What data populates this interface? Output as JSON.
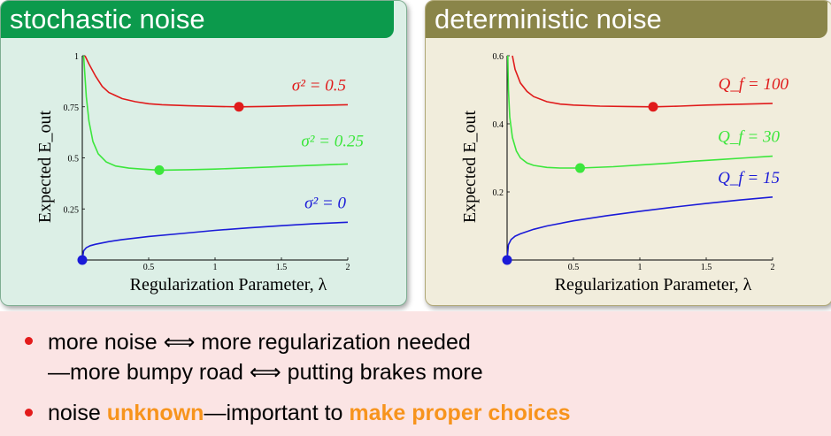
{
  "colors": {
    "stochastic_header": "#0c9a4c",
    "deterministic_header": "#8a8549",
    "red": "#e01b1b",
    "green": "#3ce63c",
    "blue": "#1b1bd8",
    "highlight": "#f7941d",
    "bullet": "#e31b1b"
  },
  "panels": {
    "stochastic": {
      "title": "stochastic noise"
    },
    "deterministic": {
      "title": "deterministic noise"
    }
  },
  "bullets": [
    {
      "line1_a": "more noise ",
      "symbol": "⟺",
      "line1_b": " more regularization needed",
      "line2_a": "—more bumpy road ",
      "line2_b": " putting brakes more"
    },
    {
      "a": "noise ",
      "hl1": "unknown",
      "b": "—important to ",
      "hl2": "make proper choices"
    }
  ],
  "chart_data": [
    {
      "type": "line",
      "xlabel": "Regularization Parameter, λ",
      "ylabel": "Expected E_out",
      "xlim": [
        0,
        2
      ],
      "ylim": [
        0,
        1
      ],
      "xticks": [
        0.5,
        1,
        1.5,
        2
      ],
      "xtick_labels": [
        "0.5",
        "1",
        "1.5",
        "2"
      ],
      "yticks": [
        0.25,
        0.5,
        0.75,
        1
      ],
      "ytick_labels": [
        "0.25",
        "0.5",
        "0.75",
        "1"
      ],
      "series": [
        {
          "name": "σ² = 0.5",
          "color": "red",
          "x": [
            0.02,
            0.05,
            0.1,
            0.15,
            0.2,
            0.3,
            0.4,
            0.5,
            0.6,
            0.8,
            1.0,
            1.18,
            1.4,
            1.6,
            1.8,
            2.0
          ],
          "y": [
            1.0,
            0.96,
            0.9,
            0.85,
            0.82,
            0.79,
            0.775,
            0.765,
            0.76,
            0.755,
            0.752,
            0.75,
            0.752,
            0.755,
            0.757,
            0.76
          ],
          "optimum": {
            "x": 1.18,
            "y": 0.75
          }
        },
        {
          "name": "σ² = 0.25",
          "color": "green",
          "x": [
            0.01,
            0.02,
            0.03,
            0.05,
            0.08,
            0.12,
            0.18,
            0.25,
            0.35,
            0.45,
            0.58,
            0.8,
            1.0,
            1.2,
            1.4,
            1.6,
            1.8,
            2.0
          ],
          "y": [
            1.0,
            0.9,
            0.8,
            0.68,
            0.58,
            0.52,
            0.48,
            0.46,
            0.45,
            0.445,
            0.44,
            0.442,
            0.445,
            0.45,
            0.455,
            0.46,
            0.465,
            0.47
          ],
          "optimum": {
            "x": 0.58,
            "y": 0.44
          }
        },
        {
          "name": "σ² = 0",
          "color": "blue",
          "x": [
            0.0,
            0.01,
            0.03,
            0.06,
            0.1,
            0.2,
            0.3,
            0.5,
            0.75,
            1.0,
            1.25,
            1.5,
            1.75,
            2.0
          ],
          "y": [
            0.0,
            0.045,
            0.06,
            0.07,
            0.077,
            0.09,
            0.1,
            0.115,
            0.13,
            0.145,
            0.157,
            0.168,
            0.178,
            0.185
          ],
          "optimum": {
            "x": 0,
            "y": 0
          }
        }
      ]
    },
    {
      "type": "line",
      "xlabel": "Regularization Parameter, λ",
      "ylabel": "Expected E_out",
      "xlim": [
        0,
        2
      ],
      "ylim": [
        0,
        0.6
      ],
      "xticks": [
        0.5,
        1,
        1.5,
        2
      ],
      "xtick_labels": [
        "0.5",
        "1",
        "1.5",
        "2"
      ],
      "yticks": [
        0.2,
        0.4,
        0.6
      ],
      "ytick_labels": [
        "0.2",
        "0.4",
        "0.6"
      ],
      "series": [
        {
          "name": "Q_f = 100",
          "color": "red",
          "x": [
            0.04,
            0.06,
            0.1,
            0.15,
            0.2,
            0.3,
            0.4,
            0.5,
            0.7,
            0.9,
            1.1,
            1.3,
            1.5,
            1.7,
            2.0
          ],
          "y": [
            0.6,
            0.56,
            0.52,
            0.495,
            0.48,
            0.465,
            0.458,
            0.455,
            0.452,
            0.451,
            0.45,
            0.452,
            0.455,
            0.457,
            0.46
          ],
          "optimum": {
            "x": 1.1,
            "y": 0.45
          }
        },
        {
          "name": "Q_f = 30",
          "color": "green",
          "x": [
            0.005,
            0.01,
            0.02,
            0.04,
            0.07,
            0.1,
            0.15,
            0.2,
            0.3,
            0.4,
            0.55,
            0.8,
            1.0,
            1.2,
            1.4,
            1.6,
            1.8,
            2.0
          ],
          "y": [
            0.6,
            0.5,
            0.42,
            0.36,
            0.32,
            0.3,
            0.285,
            0.278,
            0.272,
            0.27,
            0.27,
            0.274,
            0.279,
            0.284,
            0.29,
            0.295,
            0.3,
            0.305
          ],
          "optimum": {
            "x": 0.55,
            "y": 0.27
          }
        },
        {
          "name": "Q_f = 15",
          "color": "blue",
          "x": [
            0.0,
            0.01,
            0.03,
            0.06,
            0.1,
            0.2,
            0.3,
            0.5,
            0.75,
            1.0,
            1.25,
            1.5,
            1.75,
            2.0
          ],
          "y": [
            0.0,
            0.045,
            0.06,
            0.07,
            0.077,
            0.09,
            0.1,
            0.115,
            0.13,
            0.143,
            0.155,
            0.166,
            0.176,
            0.185
          ],
          "optimum": {
            "x": 0,
            "y": 0
          }
        }
      ]
    }
  ]
}
